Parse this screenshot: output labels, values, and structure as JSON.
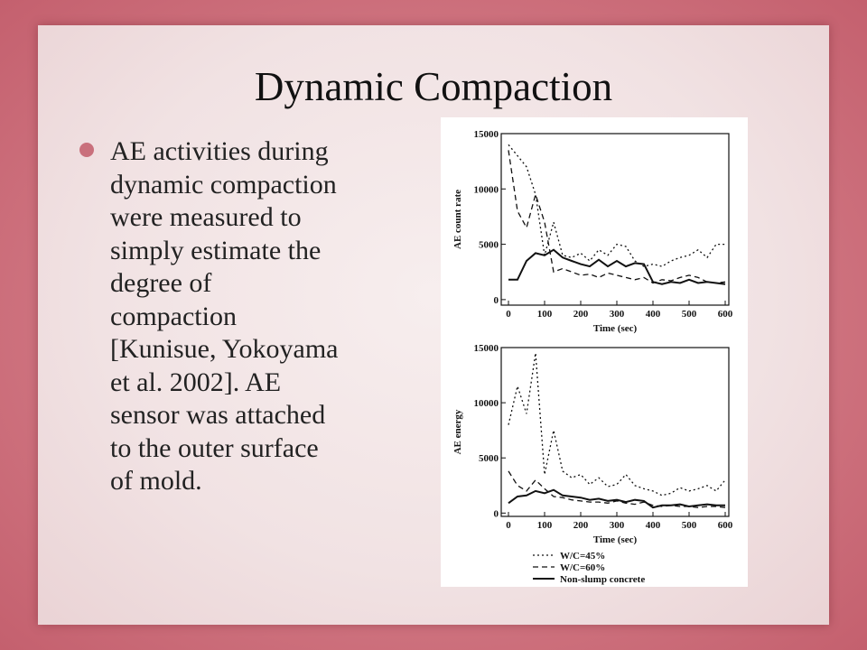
{
  "title": "Dynamic Compaction",
  "bullet_lines": [
    "AE activities during",
    "dynamic compaction",
    "were measured to",
    "simply estimate the",
    "degree of",
    "compaction",
    "[Kunisue, Yokoyama",
    "et al. 2002].   AE",
    "sensor was attached",
    "to the outer surface",
    "of mold."
  ],
  "chart_data": [
    {
      "type": "line",
      "y_label": "AE count rate",
      "x_label": "Time (sec)",
      "x": [
        0,
        25,
        50,
        75,
        100,
        125,
        150,
        175,
        200,
        225,
        250,
        275,
        300,
        325,
        350,
        375,
        400,
        425,
        450,
        475,
        500,
        525,
        550,
        575,
        600
      ],
      "xlim": [
        -20,
        610
      ],
      "xticks": [
        0,
        100,
        200,
        300,
        400,
        500,
        600
      ],
      "ylim": [
        -500,
        15000
      ],
      "yticks": [
        0,
        5000,
        10000,
        15000
      ],
      "series": [
        {
          "name": "W/C=45%",
          "color": "#111",
          "style": "dotted",
          "values": [
            14000,
            13000,
            12000,
            9500,
            4000,
            7000,
            4000,
            3800,
            4200,
            3500,
            4500,
            4000,
            5000,
            4800,
            3500,
            3000,
            3200,
            3000,
            3500,
            3800,
            4000,
            4500,
            3800,
            5000,
            5000
          ]
        },
        {
          "name": "W/C=60%",
          "color": "#111",
          "style": "dashed",
          "values": [
            13500,
            8000,
            6500,
            9500,
            7000,
            2500,
            2800,
            2500,
            2200,
            2300,
            2000,
            2400,
            2200,
            2000,
            1800,
            2000,
            1500,
            1800,
            1700,
            2000,
            2200,
            2000,
            1600,
            1500,
            1600
          ]
        },
        {
          "name": "Non-slump concrete",
          "color": "#111",
          "style": "solid",
          "values": [
            1800,
            1800,
            3500,
            4200,
            4000,
            4500,
            3800,
            3500,
            3200,
            3000,
            3600,
            3000,
            3500,
            3000,
            3300,
            3200,
            1600,
            1400,
            1600,
            1500,
            1800,
            1500,
            1600,
            1500,
            1400
          ]
        }
      ]
    },
    {
      "type": "line",
      "y_label": "AE energy",
      "x_label": "Time (sec)",
      "x": [
        0,
        25,
        50,
        75,
        100,
        125,
        150,
        175,
        200,
        225,
        250,
        275,
        300,
        325,
        350,
        375,
        400,
        425,
        450,
        475,
        500,
        525,
        550,
        575,
        600
      ],
      "xlim": [
        -20,
        610
      ],
      "xticks": [
        0,
        100,
        200,
        300,
        400,
        500,
        600
      ],
      "ylim": [
        -300,
        15000
      ],
      "yticks": [
        0,
        5000,
        10000,
        15000
      ],
      "series": [
        {
          "color": "#111",
          "style": "dotted",
          "values": [
            8000,
            11500,
            9000,
            14500,
            3500,
            7500,
            3800,
            3200,
            3500,
            2600,
            3200,
            2400,
            2600,
            3500,
            2500,
            2200,
            2000,
            1600,
            1800,
            2300,
            2000,
            2200,
            2500,
            2000,
            3000
          ]
        },
        {
          "color": "#111",
          "style": "dashed",
          "values": [
            3800,
            2500,
            2000,
            3000,
            2200,
            1500,
            1400,
            1200,
            1100,
            1000,
            1000,
            900,
            1100,
            900,
            800,
            1000,
            700,
            600,
            700,
            600,
            600,
            500,
            600,
            600,
            500
          ]
        },
        {
          "color": "#111",
          "style": "solid",
          "values": [
            900,
            1500,
            1600,
            2000,
            1800,
            2100,
            1600,
            1500,
            1400,
            1200,
            1300,
            1100,
            1200,
            1000,
            1200,
            1100,
            500,
            700,
            700,
            800,
            600,
            700,
            800,
            700,
            700
          ]
        }
      ]
    }
  ]
}
